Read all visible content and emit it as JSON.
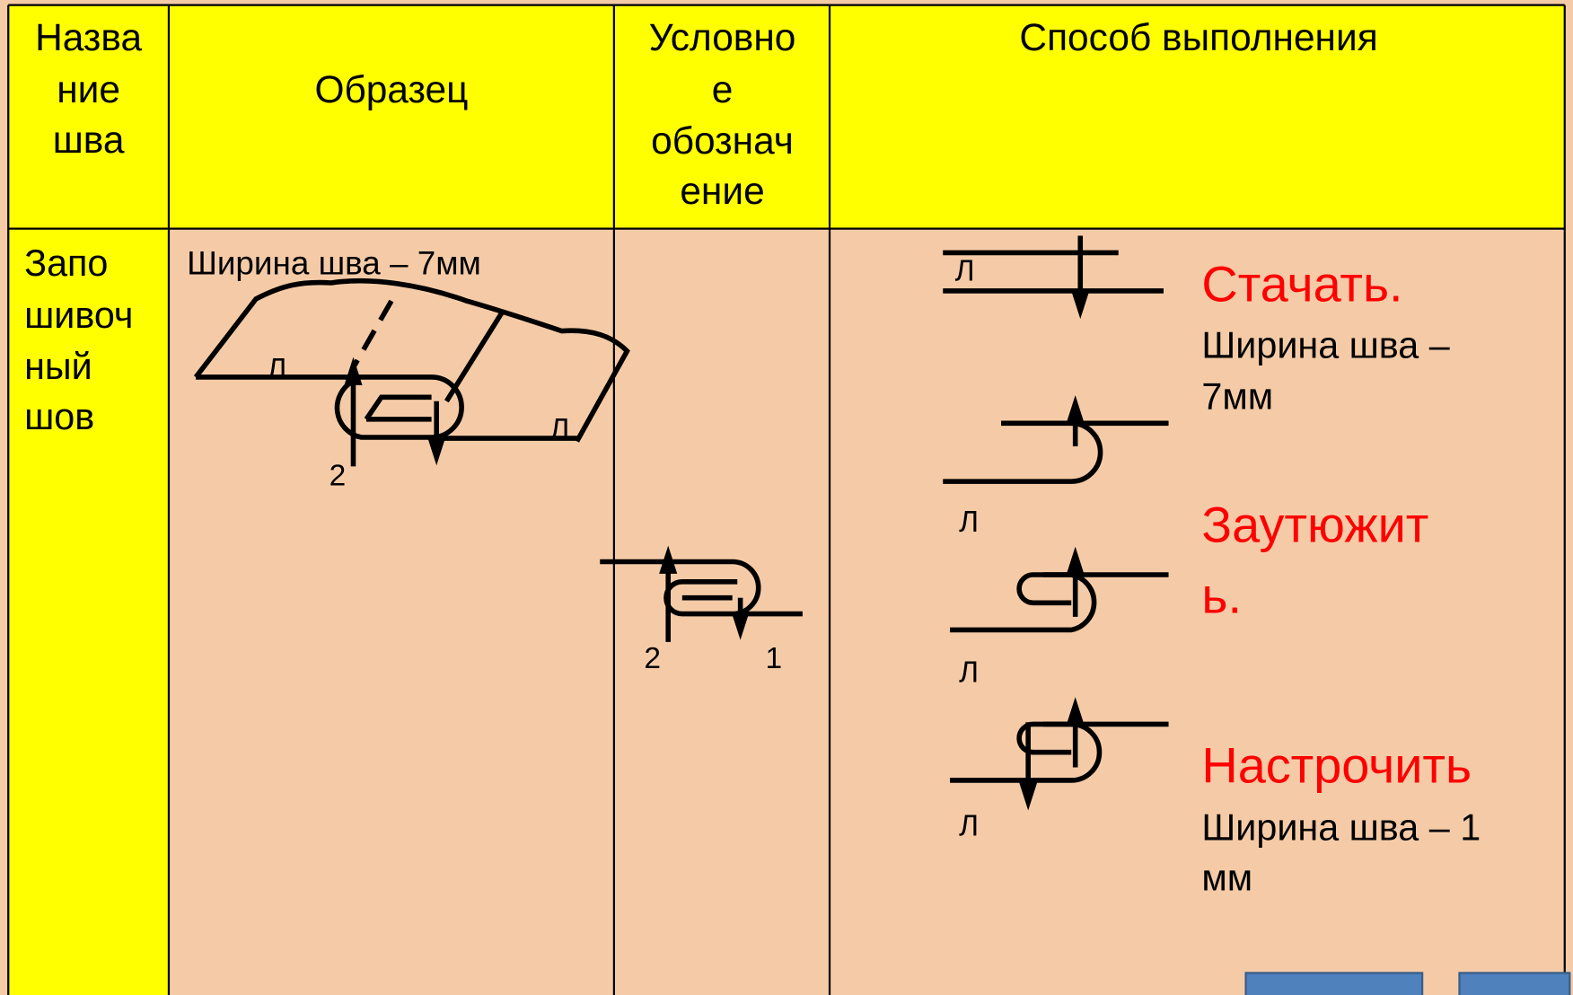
{
  "table": {
    "header": [
      {
        "lines": [
          "Назва",
          "ние",
          "шва"
        ]
      },
      {
        "lines": [
          "Образец"
        ]
      },
      {
        "lines": [
          "Условно",
          "е",
          "обознач",
          "ение"
        ]
      },
      {
        "lines": [
          "Способ выполнения"
        ]
      }
    ],
    "row": {
      "name": {
        "lines": [
          "Запо",
          "шивоч",
          "ный",
          "шов"
        ]
      },
      "sample": {
        "caption": "Ширина шва – 7мм",
        "labels": [
          "Л",
          "Л",
          "2"
        ]
      },
      "symbol": {
        "labels": [
          "2",
          "1"
        ]
      },
      "method": {
        "labels": [
          "Л",
          "Л",
          "Л",
          "Л"
        ],
        "steps": [
          {
            "lines": [
              "Стачать."
            ],
            "note": [
              "Ширина шва –",
              "7мм"
            ]
          },
          {
            "lines": [
              "Заутюжит",
              "ь."
            ]
          },
          {
            "lines": [
              "Настрочить"
            ],
            "note": [
              "Ширина шва – 1",
              "мм"
            ]
          }
        ]
      }
    }
  }
}
